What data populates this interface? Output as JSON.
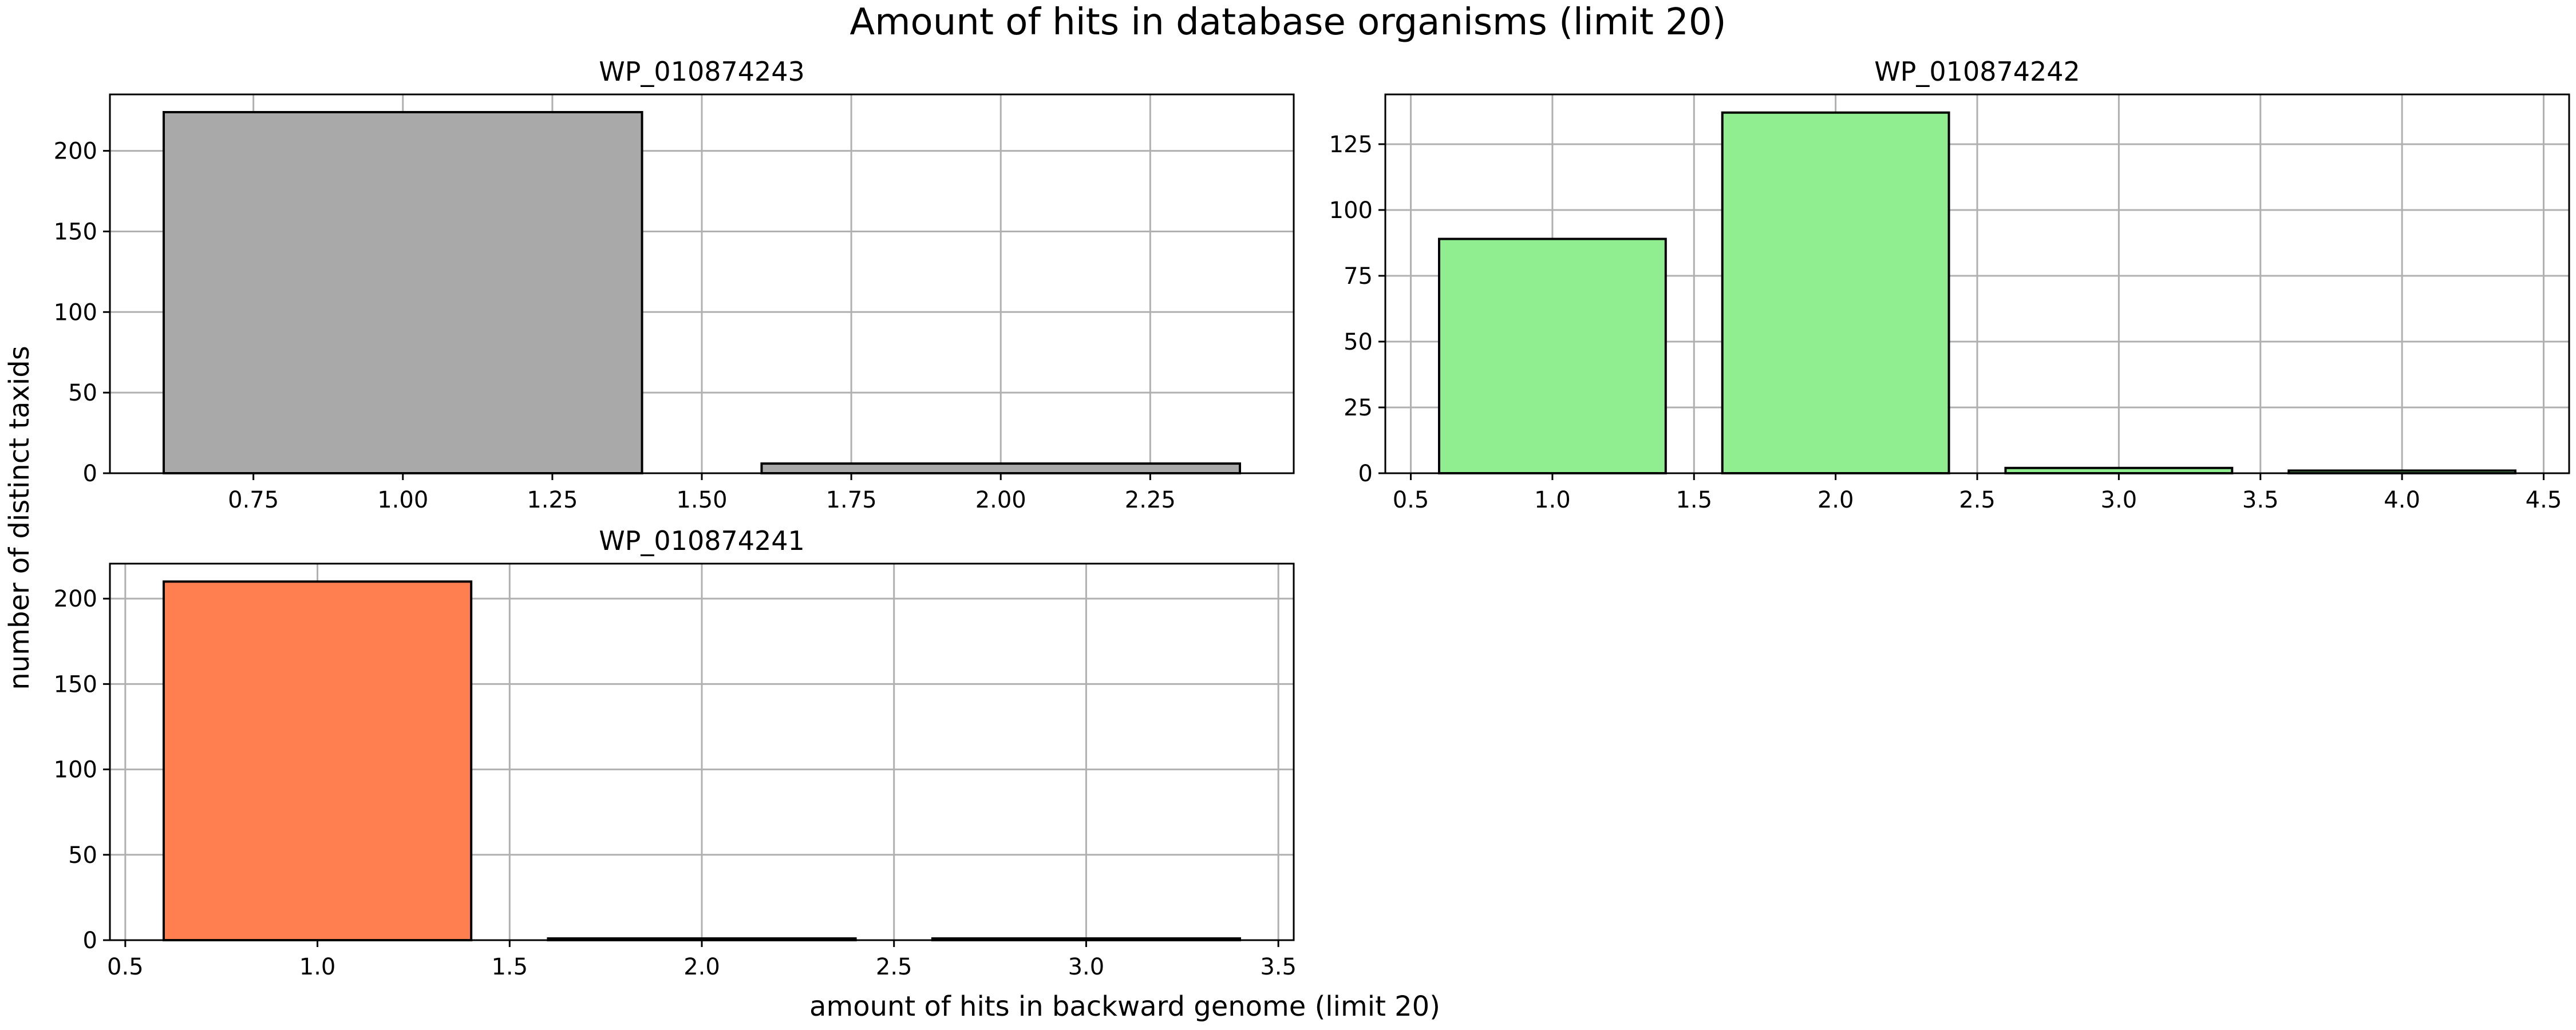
{
  "figure": {
    "suptitle": "Amount of hits in database organisms (limit 20)",
    "ylabel": "number of distinct taxids",
    "xlabel": "amount of hits in backward genome (limit 20)"
  },
  "chart_data": [
    {
      "type": "bar",
      "title": "WP_010874243",
      "x": [
        1,
        2
      ],
      "values": [
        224,
        6
      ],
      "bar_width": 0.8,
      "color": "#a9a9a9",
      "edgecolor": "#000000",
      "xlim": [
        0.51,
        2.49
      ],
      "ylim": [
        0,
        235
      ],
      "xticks": [
        0.75,
        1.0,
        1.25,
        1.5,
        1.75,
        2.0,
        2.25
      ],
      "xtick_labels": [
        "0.75",
        "1.00",
        "1.25",
        "1.50",
        "1.75",
        "2.00",
        "2.25"
      ],
      "yticks": [
        0,
        50,
        100,
        150,
        200
      ],
      "ytick_labels": [
        "0",
        "50",
        "100",
        "150",
        "200"
      ],
      "grid": true
    },
    {
      "type": "bar",
      "title": "WP_010874242",
      "x": [
        1,
        2,
        3,
        4
      ],
      "values": [
        89,
        137,
        2,
        1
      ],
      "bar_width": 0.8,
      "color": "#90ee90",
      "edgecolor": "#000000",
      "xlim": [
        0.41,
        4.59
      ],
      "ylim": [
        0,
        143.9
      ],
      "xticks": [
        0.5,
        1.0,
        1.5,
        2.0,
        2.5,
        3.0,
        3.5,
        4.0,
        4.5
      ],
      "xtick_labels": [
        "0.5",
        "1.0",
        "1.5",
        "2.0",
        "2.5",
        "3.0",
        "3.5",
        "4.0",
        "4.5"
      ],
      "yticks": [
        0,
        25,
        50,
        75,
        100,
        125
      ],
      "ytick_labels": [
        "0",
        "25",
        "50",
        "75",
        "100",
        "125"
      ],
      "grid": true
    },
    {
      "type": "bar",
      "title": "WP_010874241",
      "x": [
        1,
        2,
        3
      ],
      "values": [
        210,
        1,
        1
      ],
      "bar_width": 0.8,
      "color": "#ff7f50",
      "edgecolor": "#000000",
      "xlim": [
        0.46,
        3.54
      ],
      "ylim": [
        0,
        220.5
      ],
      "xticks": [
        0.5,
        1.0,
        1.5,
        2.0,
        2.5,
        3.0,
        3.5
      ],
      "xtick_labels": [
        "0.5",
        "1.0",
        "1.5",
        "2.0",
        "2.5",
        "3.0",
        "3.5"
      ],
      "yticks": [
        0,
        50,
        100,
        150,
        200
      ],
      "ytick_labels": [
        "0",
        "50",
        "100",
        "150",
        "200"
      ],
      "grid": true
    }
  ]
}
